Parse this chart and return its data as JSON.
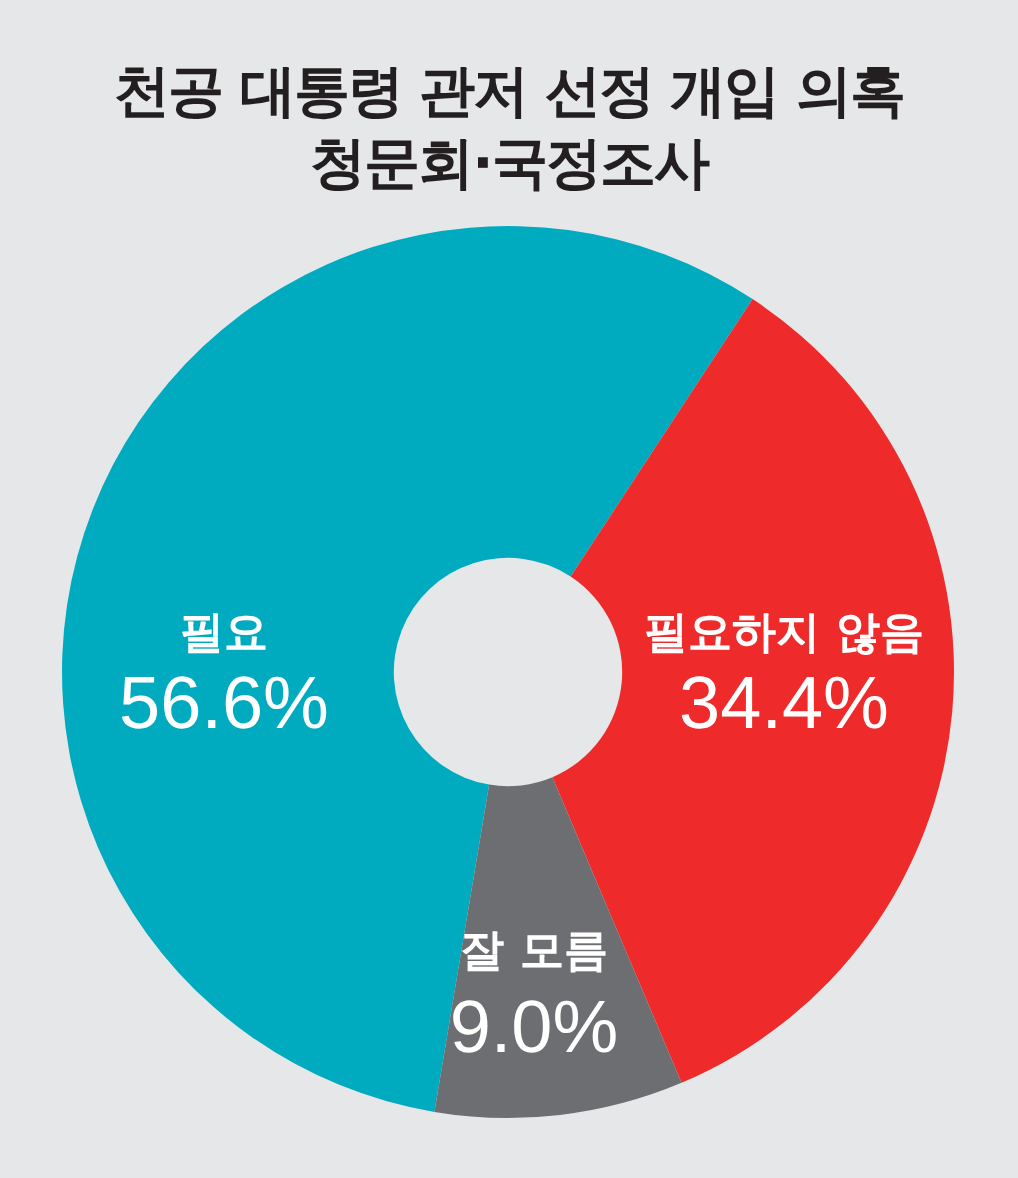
{
  "chart_data": {
    "type": "donut",
    "title": "천공 대통령 관저 선정 개입 의혹\n청문회·국정조사",
    "categories": [
      "필요",
      "필요하지 않음",
      "잘 모름"
    ],
    "values": [
      56.6,
      34.4,
      9.0
    ],
    "colors": [
      "#00abc0",
      "#ef2a2a",
      "#6d6e71"
    ],
    "value_labels": [
      "56.6%",
      "34.4%",
      "9.0%"
    ]
  }
}
